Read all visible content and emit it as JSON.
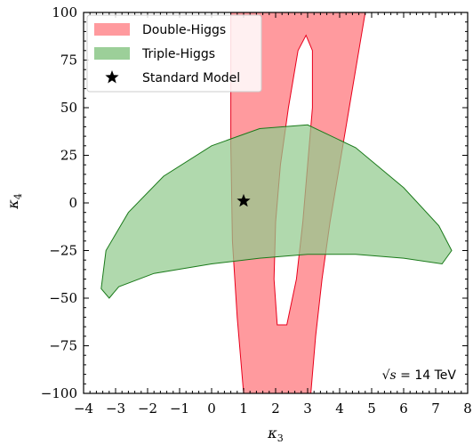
{
  "chart_data": {
    "type": "area",
    "title": "",
    "xlabel": "κ",
    "xlabel_sub": "3",
    "ylabel": "κ",
    "ylabel_sub": "4",
    "xlim": [
      -4,
      8
    ],
    "ylim": [
      -100,
      100
    ],
    "xticks": [
      -4,
      -3,
      -2,
      -1,
      0,
      1,
      2,
      3,
      4,
      5,
      6,
      7,
      8
    ],
    "xtick_labels": [
      "−4",
      "−3",
      "−2",
      "−1",
      "0",
      "1",
      "2",
      "3",
      "4",
      "5",
      "6",
      "7",
      "8"
    ],
    "yticks": [
      -100,
      -75,
      -50,
      -25,
      0,
      25,
      50,
      75,
      100
    ],
    "ytick_labels": [
      "−100",
      "−75",
      "−50",
      "−25",
      "0",
      "25",
      "50",
      "75",
      "100"
    ],
    "grid": false,
    "legend_position": "top-left",
    "annotation": {
      "prefix": "√s",
      "text": " = 14 TeV",
      "position": "bottom-right"
    },
    "series": [
      {
        "name": "Double-Higgs",
        "fill": "#ff9a9e",
        "stroke": "#e8001c",
        "outer": [
          [
            0.6,
            100
          ],
          [
            4.8,
            100
          ],
          [
            4.6,
            80
          ],
          [
            4.3,
            50
          ],
          [
            4.0,
            20
          ],
          [
            3.7,
            -10
          ],
          [
            3.45,
            -40
          ],
          [
            3.25,
            -70
          ],
          [
            3.1,
            -100
          ],
          [
            1.0,
            -100
          ],
          [
            0.8,
            -60
          ],
          [
            0.65,
            -20
          ],
          [
            0.6,
            30
          ],
          [
            0.6,
            100
          ]
        ],
        "inner": [
          [
            2.95,
            88
          ],
          [
            3.15,
            80
          ],
          [
            3.15,
            50
          ],
          [
            3.0,
            20
          ],
          [
            2.85,
            -10
          ],
          [
            2.65,
            -40
          ],
          [
            2.35,
            -64
          ],
          [
            2.05,
            -64
          ],
          [
            1.95,
            -40
          ],
          [
            2.0,
            -10
          ],
          [
            2.15,
            20
          ],
          [
            2.4,
            50
          ],
          [
            2.7,
            80
          ],
          [
            2.95,
            88
          ]
        ]
      },
      {
        "name": "Triple-Higgs",
        "fill": "#91ca8e",
        "stroke": "#1a7a1a",
        "outer": [
          [
            -3.2,
            -50
          ],
          [
            -2.9,
            -44
          ],
          [
            -1.8,
            -37
          ],
          [
            0.0,
            -32
          ],
          [
            1.5,
            -29
          ],
          [
            3.0,
            -27
          ],
          [
            4.5,
            -27
          ],
          [
            6.0,
            -29
          ],
          [
            7.2,
            -32
          ],
          [
            7.5,
            -25
          ],
          [
            7.1,
            -12
          ],
          [
            6.0,
            8
          ],
          [
            4.5,
            29
          ],
          [
            3.0,
            41
          ],
          [
            1.5,
            39
          ],
          [
            0.0,
            30
          ],
          [
            -1.5,
            14
          ],
          [
            -2.6,
            -5
          ],
          [
            -3.3,
            -25
          ],
          [
            -3.45,
            -45
          ],
          [
            -3.2,
            -50
          ]
        ]
      },
      {
        "name": "Standard Model",
        "marker": "star",
        "color": "#000000",
        "points": [
          [
            1,
            1
          ]
        ]
      }
    ]
  }
}
